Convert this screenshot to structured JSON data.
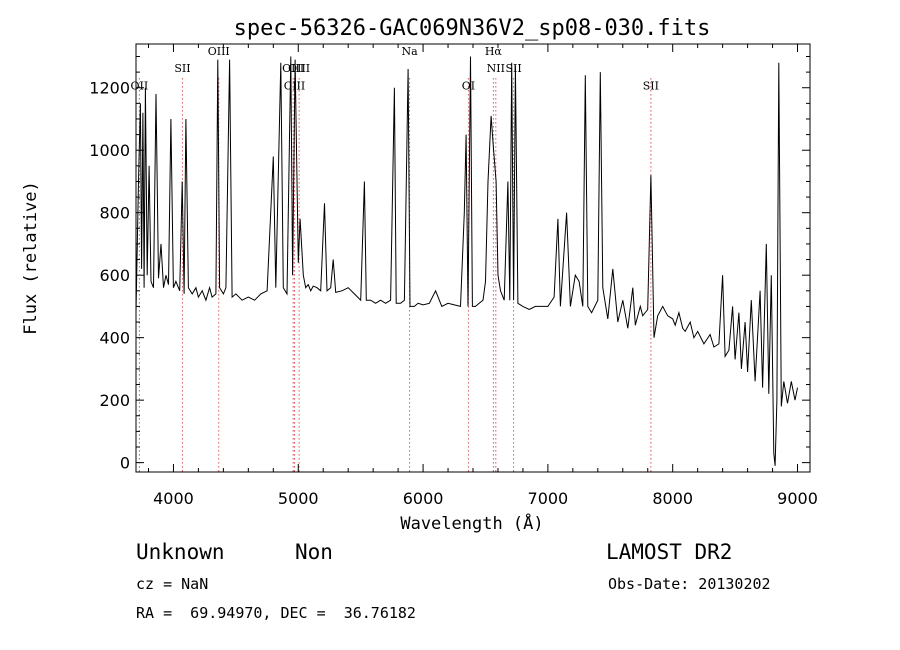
{
  "chart_data": {
    "type": "line",
    "title": "spec-56326-GAC069N36V2_sp08-030.fits",
    "xlabel": "Wavelength (Å)",
    "ylabel": "Flux (relative)",
    "xlim": [
      3700,
      9100
    ],
    "ylim": [
      -30,
      1340
    ],
    "xticks": [
      "4000",
      "5000",
      "6000",
      "7000",
      "8000",
      "9000"
    ],
    "yticks": [
      "0",
      "200",
      "400",
      "600",
      "800",
      "1000",
      "1200"
    ],
    "line_color": "#000000",
    "marker_color": "#cc0000",
    "spectral_lines": [
      {
        "name": "OII",
        "x": 3727,
        "label_y": 1195
      },
      {
        "name": "SII",
        "x": 4072,
        "label_y": 1250
      },
      {
        "name": "OIII",
        "x": 4363,
        "label_y": 1305
      },
      {
        "name": "OIII",
        "x": 4959,
        "label_y": 1250
      },
      {
        "name": "OIII",
        "x": 5007,
        "label_y": 1250
      },
      {
        "name": "CIII",
        "x": 4970,
        "label_y": 1195
      },
      {
        "name": "Na",
        "x": 5892,
        "label_y": 1305
      },
      {
        "name": "OI",
        "x": 6363,
        "label_y": 1195
      },
      {
        "name": "Hα",
        "x": 6563,
        "label_y": 1305
      },
      {
        "name": "NII",
        "x": 6583,
        "label_y": 1250
      },
      {
        "name": "SII",
        "x": 6725,
        "label_y": 1250
      },
      {
        "name": "SII",
        "x": 7825,
        "label_y": 1195
      }
    ],
    "series": [
      {
        "values": [
          [
            3700,
            480
          ],
          [
            3720,
            900
          ],
          [
            3735,
            1150
          ],
          [
            3745,
            620
          ],
          [
            3755,
            1120
          ],
          [
            3765,
            560
          ],
          [
            3775,
            1200
          ],
          [
            3790,
            600
          ],
          [
            3805,
            950
          ],
          [
            3820,
            580
          ],
          [
            3840,
            560
          ],
          [
            3860,
            1180
          ],
          [
            3880,
            590
          ],
          [
            3900,
            700
          ],
          [
            3920,
            560
          ],
          [
            3940,
            600
          ],
          [
            3960,
            570
          ],
          [
            3980,
            1100
          ],
          [
            4000,
            560
          ],
          [
            4020,
            580
          ],
          [
            4050,
            550
          ],
          [
            4070,
            900
          ],
          [
            4085,
            540
          ],
          [
            4100,
            1100
          ],
          [
            4120,
            560
          ],
          [
            4150,
            540
          ],
          [
            4180,
            560
          ],
          [
            4200,
            530
          ],
          [
            4230,
            550
          ],
          [
            4260,
            520
          ],
          [
            4290,
            560
          ],
          [
            4310,
            530
          ],
          [
            4340,
            540
          ],
          [
            4355,
            1290
          ],
          [
            4370,
            560
          ],
          [
            4400,
            540
          ],
          [
            4420,
            560
          ],
          [
            4450,
            1290
          ],
          [
            4470,
            530
          ],
          [
            4500,
            540
          ],
          [
            4550,
            520
          ],
          [
            4600,
            530
          ],
          [
            4650,
            520
          ],
          [
            4700,
            540
          ],
          [
            4750,
            550
          ],
          [
            4800,
            980
          ],
          [
            4820,
            560
          ],
          [
            4860,
            1280
          ],
          [
            4880,
            560
          ],
          [
            4910,
            540
          ],
          [
            4940,
            1300
          ],
          [
            4955,
            600
          ],
          [
            4975,
            1290
          ],
          [
            5000,
            640
          ],
          [
            5015,
            780
          ],
          [
            5040,
            600
          ],
          [
            5060,
            560
          ],
          [
            5080,
            570
          ],
          [
            5100,
            550
          ],
          [
            5120,
            565
          ],
          [
            5150,
            560
          ],
          [
            5180,
            550
          ],
          [
            5210,
            830
          ],
          [
            5230,
            550
          ],
          [
            5260,
            560
          ],
          [
            5280,
            650
          ],
          [
            5300,
            545
          ],
          [
            5350,
            550
          ],
          [
            5400,
            560
          ],
          [
            5450,
            540
          ],
          [
            5500,
            520
          ],
          [
            5530,
            900
          ],
          [
            5545,
            520
          ],
          [
            5580,
            520
          ],
          [
            5620,
            510
          ],
          [
            5660,
            520
          ],
          [
            5700,
            510
          ],
          [
            5740,
            520
          ],
          [
            5770,
            1200
          ],
          [
            5785,
            510
          ],
          [
            5820,
            510
          ],
          [
            5850,
            520
          ],
          [
            5880,
            1260
          ],
          [
            5895,
            500
          ],
          [
            5930,
            500
          ],
          [
            5960,
            510
          ],
          [
            6000,
            505
          ],
          [
            6050,
            510
          ],
          [
            6100,
            550
          ],
          [
            6150,
            500
          ],
          [
            6200,
            510
          ],
          [
            6250,
            505
          ],
          [
            6300,
            500
          ],
          [
            6330,
            800
          ],
          [
            6345,
            1050
          ],
          [
            6360,
            500
          ],
          [
            6380,
            1300
          ],
          [
            6395,
            500
          ],
          [
            6420,
            500
          ],
          [
            6450,
            510
          ],
          [
            6480,
            520
          ],
          [
            6500,
            580
          ],
          [
            6520,
            900
          ],
          [
            6545,
            1110
          ],
          [
            6565,
            1000
          ],
          [
            6585,
            900
          ],
          [
            6600,
            600
          ],
          [
            6620,
            550
          ],
          [
            6650,
            520
          ],
          [
            6680,
            900
          ],
          [
            6695,
            520
          ],
          [
            6710,
            1280
          ],
          [
            6725,
            520
          ],
          [
            6740,
            1270
          ],
          [
            6760,
            510
          ],
          [
            6800,
            500
          ],
          [
            6850,
            490
          ],
          [
            6900,
            500
          ],
          [
            6950,
            500
          ],
          [
            7000,
            500
          ],
          [
            7050,
            530
          ],
          [
            7080,
            780
          ],
          [
            7100,
            500
          ],
          [
            7150,
            800
          ],
          [
            7180,
            500
          ],
          [
            7220,
            600
          ],
          [
            7250,
            580
          ],
          [
            7280,
            500
          ],
          [
            7300,
            1240
          ],
          [
            7320,
            500
          ],
          [
            7350,
            480
          ],
          [
            7400,
            520
          ],
          [
            7420,
            1250
          ],
          [
            7440,
            560
          ],
          [
            7480,
            460
          ],
          [
            7520,
            620
          ],
          [
            7560,
            450
          ],
          [
            7600,
            520
          ],
          [
            7640,
            430
          ],
          [
            7680,
            560
          ],
          [
            7700,
            440
          ],
          [
            7740,
            500
          ],
          [
            7760,
            470
          ],
          [
            7800,
            490
          ],
          [
            7825,
            920
          ],
          [
            7850,
            400
          ],
          [
            7880,
            470
          ],
          [
            7920,
            500
          ],
          [
            7960,
            470
          ],
          [
            8000,
            460
          ],
          [
            8020,
            440
          ],
          [
            8050,
            480
          ],
          [
            8080,
            430
          ],
          [
            8100,
            420
          ],
          [
            8140,
            450
          ],
          [
            8170,
            400
          ],
          [
            8200,
            420
          ],
          [
            8250,
            380
          ],
          [
            8300,
            410
          ],
          [
            8330,
            370
          ],
          [
            8370,
            380
          ],
          [
            8400,
            600
          ],
          [
            8420,
            340
          ],
          [
            8450,
            360
          ],
          [
            8480,
            500
          ],
          [
            8500,
            330
          ],
          [
            8530,
            480
          ],
          [
            8550,
            300
          ],
          [
            8580,
            450
          ],
          [
            8600,
            290
          ],
          [
            8630,
            520
          ],
          [
            8660,
            260
          ],
          [
            8700,
            550
          ],
          [
            8720,
            240
          ],
          [
            8750,
            700
          ],
          [
            8770,
            220
          ],
          [
            8790,
            600
          ],
          [
            8810,
            30
          ],
          [
            8820,
            -10
          ],
          [
            8835,
            200
          ],
          [
            8850,
            1280
          ],
          [
            8870,
            180
          ],
          [
            8890,
            260
          ],
          [
            8920,
            190
          ],
          [
            8950,
            260
          ],
          [
            8980,
            200
          ],
          [
            9000,
            240
          ]
        ]
      }
    ]
  },
  "info": {
    "class_label": "Unknown",
    "subclass_label": "Non",
    "survey": "LAMOST DR2",
    "cz": "cz = NaN",
    "obs_date": "Obs-Date: 20130202",
    "coords": "RA =  69.94970, DEC =  36.76182"
  }
}
